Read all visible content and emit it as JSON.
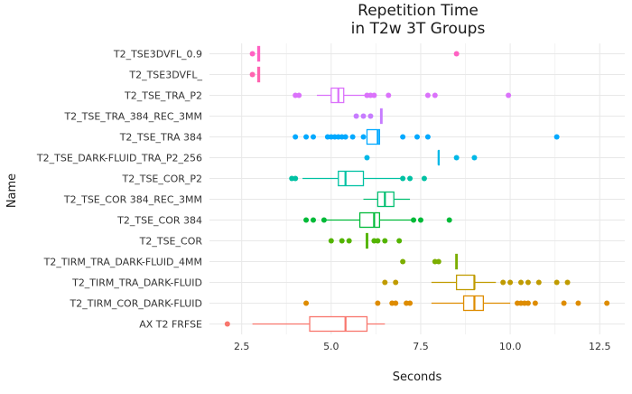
{
  "chart_data": {
    "type": "boxplot",
    "orientation": "horizontal",
    "title_lines": [
      "Repetition Time",
      "in T2w 3T Groups"
    ],
    "xlabel": "Seconds",
    "ylabel": "Name",
    "xlim": [
      1.6,
      13.2
    ],
    "xticks": [
      2.5,
      5.0,
      7.5,
      10.0,
      12.5
    ],
    "xtick_labels": [
      "2.5",
      "5.0",
      "7.5",
      "10.0",
      "12.5"
    ],
    "grid": true,
    "legend": "none",
    "series": [
      {
        "name": "T2_TSE3DVFL_0.9",
        "color": "#FF61C3",
        "box": {
          "q1": 2.95,
          "median": 2.98,
          "q3": 3.0,
          "whisker_low": 2.95,
          "whisker_high": 3.0
        },
        "outliers": [
          2.8,
          8.5
        ]
      },
      {
        "name": "T2_TSE3DVFL_",
        "color": "#FF64B0",
        "box": {
          "q1": 2.95,
          "median": 2.98,
          "q3": 3.0,
          "whisker_low": 2.95,
          "whisker_high": 3.0
        },
        "outliers": [
          2.8
        ]
      },
      {
        "name": "T2_TSE_TRA_P2",
        "color": "#DB72FB",
        "box": {
          "q1": 5.0,
          "median": 5.2,
          "q3": 5.35,
          "whisker_low": 4.6,
          "whisker_high": 6.1
        },
        "outliers": [
          4.0,
          4.1,
          6.0,
          6.1,
          6.2,
          6.6,
          7.7,
          7.9,
          9.95
        ]
      },
      {
        "name": "T2_TSE_TRA_384_REC_3MM",
        "color": "#C77CFF",
        "box": {
          "q1": 6.38,
          "median": 6.4,
          "q3": 6.42,
          "whisker_low": 6.38,
          "whisker_high": 6.42
        },
        "outliers": [
          5.7,
          5.9,
          6.1
        ]
      },
      {
        "name": "T2_TSE_TRA 384",
        "color": "#00A9FF",
        "box": {
          "q1": 6.0,
          "median": 6.3,
          "q3": 6.35,
          "whisker_low": 6.0,
          "whisker_high": 6.35
        },
        "outliers": [
          4.0,
          4.3,
          4.5,
          4.9,
          5.0,
          5.1,
          5.2,
          5.3,
          5.4,
          5.6,
          5.9,
          7.0,
          7.4,
          7.7,
          11.3
        ]
      },
      {
        "name": "T2_TSE_DARK-FLUID_TRA_P2_256",
        "color": "#00B8E7",
        "box": {
          "q1": 8.0,
          "median": 8.0,
          "q3": 8.0,
          "whisker_low": 8.0,
          "whisker_high": 8.0
        },
        "outliers": [
          6.0,
          8.5,
          9.0
        ]
      },
      {
        "name": "T2_TSE_COR_P2",
        "color": "#00C1A3",
        "box": {
          "q1": 5.2,
          "median": 5.4,
          "q3": 5.9,
          "whisker_low": 4.2,
          "whisker_high": 7.0
        },
        "outliers": [
          3.9,
          4.0,
          7.0,
          7.2,
          7.6
        ]
      },
      {
        "name": "T2_TSE_COR 384_REC_3MM",
        "color": "#00BE70",
        "box": {
          "q1": 6.3,
          "median": 6.5,
          "q3": 6.75,
          "whisker_low": 5.9,
          "whisker_high": 7.2
        },
        "outliers": []
      },
      {
        "name": "T2_TSE_COR 384",
        "color": "#00BA38",
        "box": {
          "q1": 5.8,
          "median": 6.2,
          "q3": 6.35,
          "whisker_low": 4.8,
          "whisker_high": 7.3
        },
        "outliers": [
          4.3,
          4.5,
          4.8,
          7.3,
          7.5,
          8.3
        ]
      },
      {
        "name": "T2_TSE_COR",
        "color": "#53B400",
        "box": {
          "q1": 5.98,
          "median": 6.0,
          "q3": 6.02,
          "whisker_low": 5.98,
          "whisker_high": 6.02
        },
        "outliers": [
          5.0,
          5.3,
          5.5,
          6.2,
          6.3,
          6.5,
          6.9
        ]
      },
      {
        "name": "T2_TIRM_TRA_DARK-FLUID_4MM",
        "color": "#7CAE00",
        "box": {
          "q1": 8.48,
          "median": 8.5,
          "q3": 8.52,
          "whisker_low": 8.48,
          "whisker_high": 8.52
        },
        "outliers": [
          7.0,
          7.9,
          8.0
        ]
      },
      {
        "name": "T2_TIRM_TRA_DARK-FLUID",
        "color": "#C09B00",
        "box": {
          "q1": 8.5,
          "median": 9.0,
          "q3": 9.0,
          "whisker_low": 7.8,
          "whisker_high": 9.6
        },
        "outliers": [
          6.5,
          6.8,
          9.8,
          10.0,
          10.3,
          10.5,
          10.8,
          11.3,
          11.6
        ]
      },
      {
        "name": "T2_TIRM_COR_DARK-FLUID",
        "color": "#DE8C00",
        "box": {
          "q1": 8.7,
          "median": 9.0,
          "q3": 9.25,
          "whisker_low": 7.8,
          "whisker_high": 10.0
        },
        "outliers": [
          4.3,
          6.3,
          6.7,
          6.8,
          7.1,
          7.2,
          10.2,
          10.3,
          10.4,
          10.5,
          10.7,
          11.5,
          11.9,
          12.7
        ]
      },
      {
        "name": "AX T2 FRFSE",
        "color": "#F8766D",
        "box": {
          "q1": 4.4,
          "median": 5.4,
          "q3": 6.0,
          "whisker_low": 2.8,
          "whisker_high": 6.5
        },
        "outliers": [
          2.1
        ]
      }
    ]
  }
}
